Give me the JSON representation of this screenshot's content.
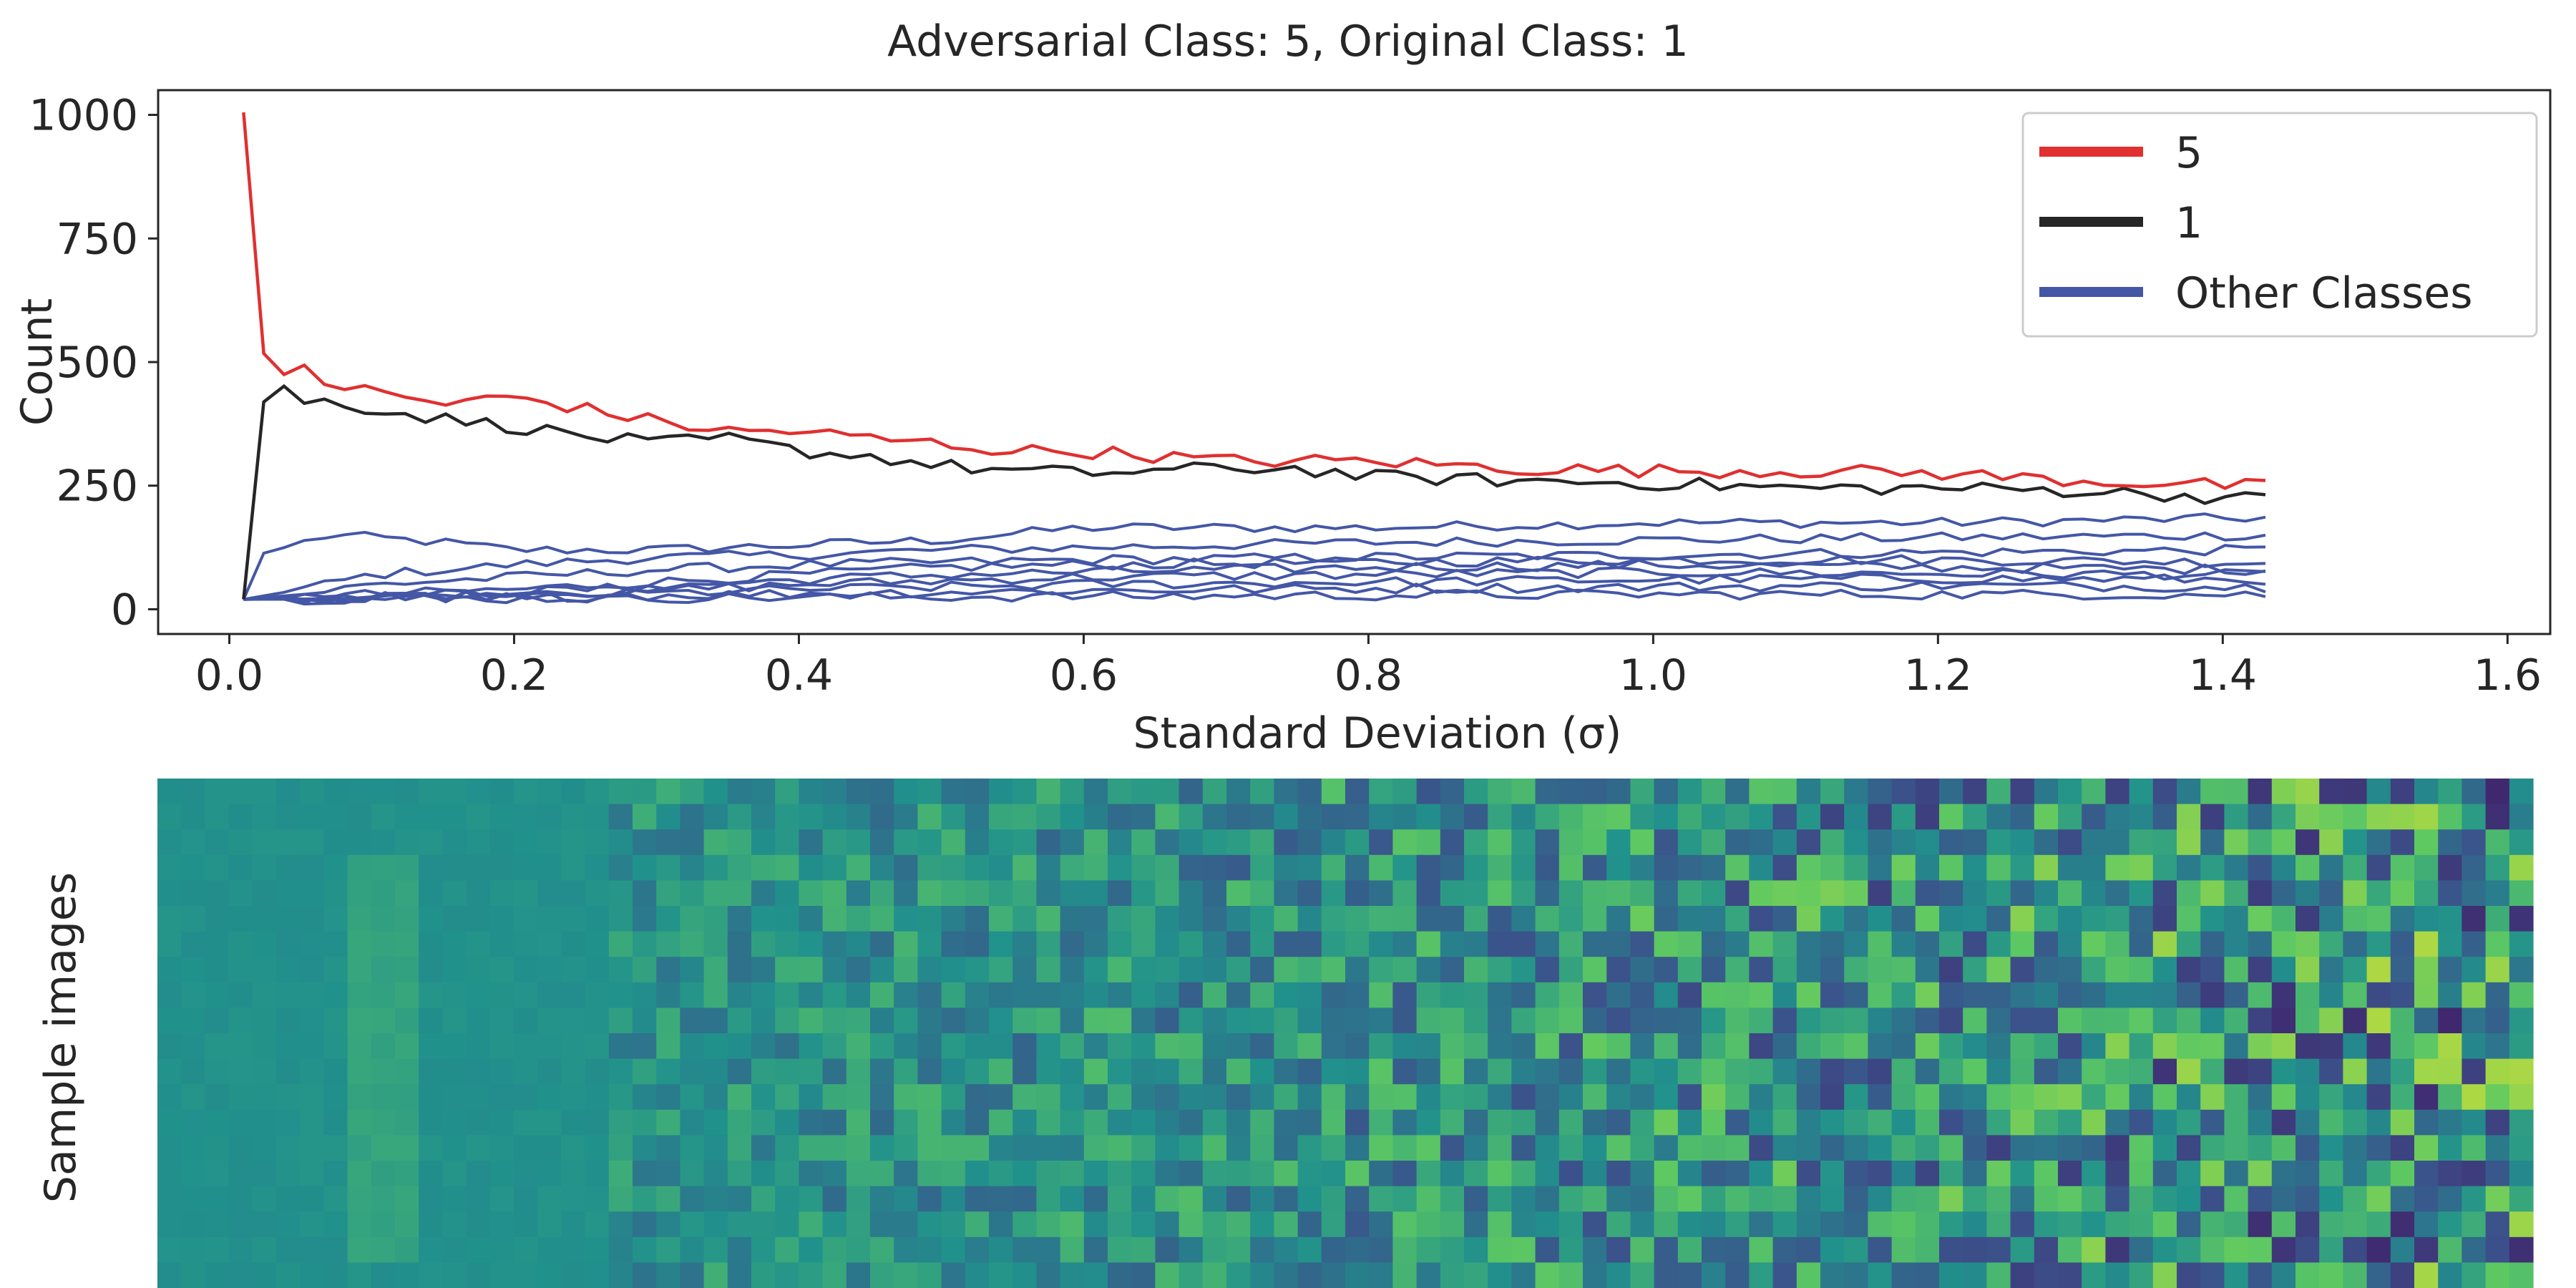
{
  "chart_data": [
    {
      "type": "line",
      "title": "Adversarial Class: 5, Original Class: 1",
      "xlabel": "Standard Deviation (σ)",
      "ylabel": "Count",
      "xlim": [
        -0.05,
        1.63
      ],
      "ylim": [
        -50,
        1050
      ],
      "xticks": [
        0.0,
        0.2,
        0.4,
        0.6,
        0.8,
        1.0,
        1.2,
        1.4,
        1.6
      ],
      "xtick_labels": [
        "0.0",
        "0.2",
        "0.4",
        "0.6",
        "0.8",
        "1.0",
        "1.2",
        "1.4",
        "1.6"
      ],
      "yticks": [
        0,
        250,
        500,
        750,
        1000
      ],
      "ytick_labels": [
        "0",
        "250",
        "500",
        "750",
        "1000"
      ],
      "grid": false,
      "legend": {
        "placement": "top-right",
        "entries": [
          "5",
          "1",
          "Other Classes"
        ]
      },
      "colors": {
        "adversarial": "#e03030",
        "original": "#262626",
        "other": "#4457a6"
      },
      "x": {
        "start": 0.01,
        "step": 0.0142,
        "count": 101
      },
      "series": [
        {
          "name": "5",
          "color": "#e03030",
          "keypoints": [
            [
              0.01,
              1005
            ],
            [
              0.02,
              530
            ],
            [
              0.04,
              470
            ],
            [
              0.05,
              500
            ],
            [
              0.07,
              455
            ],
            [
              0.1,
              440
            ],
            [
              0.15,
              415
            ],
            [
              0.2,
              430
            ],
            [
              0.25,
              405
            ],
            [
              0.3,
              380
            ],
            [
              0.35,
              360
            ],
            [
              0.4,
              360
            ],
            [
              0.45,
              345
            ],
            [
              0.5,
              335
            ],
            [
              0.55,
              320
            ],
            [
              0.6,
              320
            ],
            [
              0.7,
              300
            ],
            [
              0.75,
              300
            ],
            [
              0.8,
              300
            ],
            [
              0.9,
              285
            ],
            [
              1.0,
              280
            ],
            [
              1.1,
              280
            ],
            [
              1.2,
              275
            ],
            [
              1.3,
              260
            ],
            [
              1.43,
              248
            ]
          ]
        },
        {
          "name": "1",
          "color": "#262626",
          "keypoints": [
            [
              0.01,
              20
            ],
            [
              0.02,
              410
            ],
            [
              0.04,
              455
            ],
            [
              0.05,
              410
            ],
            [
              0.07,
              425
            ],
            [
              0.1,
              405
            ],
            [
              0.15,
              385
            ],
            [
              0.2,
              370
            ],
            [
              0.25,
              350
            ],
            [
              0.3,
              335
            ],
            [
              0.35,
              345
            ],
            [
              0.4,
              320
            ],
            [
              0.45,
              310
            ],
            [
              0.5,
              290
            ],
            [
              0.55,
              280
            ],
            [
              0.6,
              275
            ],
            [
              0.7,
              285
            ],
            [
              0.75,
              285
            ],
            [
              0.8,
              268
            ],
            [
              0.9,
              260
            ],
            [
              1.0,
              255
            ],
            [
              1.1,
              245
            ],
            [
              1.2,
              245
            ],
            [
              1.3,
              240
            ],
            [
              1.43,
              222
            ]
          ]
        }
      ],
      "other_series": [
        {
          "keypoints": [
            [
              0.01,
              20
            ],
            [
              0.02,
              110
            ],
            [
              0.07,
              150
            ],
            [
              0.1,
              145
            ],
            [
              0.15,
              135
            ],
            [
              0.2,
              120
            ],
            [
              0.3,
              120
            ],
            [
              0.4,
              130
            ],
            [
              0.5,
              140
            ],
            [
              0.6,
              165
            ],
            [
              0.8,
              165
            ],
            [
              1.0,
              175
            ],
            [
              1.2,
              175
            ],
            [
              1.43,
              185
            ]
          ]
        },
        {
          "keypoints": [
            [
              0.01,
              20
            ],
            [
              0.05,
              40
            ],
            [
              0.1,
              70
            ],
            [
              0.2,
              90
            ],
            [
              0.3,
              105
            ],
            [
              0.4,
              110
            ],
            [
              0.5,
              120
            ],
            [
              0.6,
              125
            ],
            [
              0.8,
              135
            ],
            [
              1.0,
              140
            ],
            [
              1.2,
              145
            ],
            [
              1.43,
              150
            ]
          ]
        },
        {
          "keypoints": [
            [
              0.01,
              20
            ],
            [
              0.05,
              30
            ],
            [
              0.1,
              50
            ],
            [
              0.2,
              65
            ],
            [
              0.3,
              80
            ],
            [
              0.4,
              90
            ],
            [
              0.5,
              95
            ],
            [
              0.6,
              100
            ],
            [
              0.8,
              105
            ],
            [
              1.0,
              110
            ],
            [
              1.2,
              115
            ],
            [
              1.43,
              120
            ]
          ]
        },
        {
          "keypoints": [
            [
              0.01,
              20
            ],
            [
              0.1,
              30
            ],
            [
              0.2,
              40
            ],
            [
              0.3,
              55
            ],
            [
              0.4,
              70
            ],
            [
              0.5,
              85
            ],
            [
              0.6,
              90
            ],
            [
              0.8,
              95
            ],
            [
              1.0,
              100
            ],
            [
              1.2,
              100
            ],
            [
              1.43,
              95
            ]
          ]
        },
        {
          "keypoints": [
            [
              0.01,
              20
            ],
            [
              0.1,
              25
            ],
            [
              0.2,
              35
            ],
            [
              0.3,
              45
            ],
            [
              0.4,
              60
            ],
            [
              0.5,
              70
            ],
            [
              0.6,
              75
            ],
            [
              0.8,
              85
            ],
            [
              1.0,
              90
            ],
            [
              1.2,
              85
            ],
            [
              1.43,
              80
            ]
          ]
        },
        {
          "keypoints": [
            [
              0.01,
              20
            ],
            [
              0.1,
              25
            ],
            [
              0.2,
              30
            ],
            [
              0.3,
              38
            ],
            [
              0.4,
              50
            ],
            [
              0.5,
              58
            ],
            [
              0.6,
              65
            ],
            [
              0.8,
              70
            ],
            [
              1.0,
              75
            ],
            [
              1.2,
              72
            ],
            [
              1.43,
              70
            ]
          ]
        },
        {
          "keypoints": [
            [
              0.01,
              20
            ],
            [
              0.1,
              22
            ],
            [
              0.2,
              27
            ],
            [
              0.3,
              32
            ],
            [
              0.4,
              40
            ],
            [
              0.5,
              45
            ],
            [
              0.6,
              50
            ],
            [
              0.8,
              55
            ],
            [
              1.0,
              60
            ],
            [
              1.2,
              62
            ],
            [
              1.43,
              60
            ]
          ]
        },
        {
          "keypoints": [
            [
              0.01,
              20
            ],
            [
              0.1,
              22
            ],
            [
              0.2,
              25
            ],
            [
              0.3,
              28
            ],
            [
              0.4,
              32
            ],
            [
              0.5,
              35
            ],
            [
              0.6,
              38
            ],
            [
              0.8,
              42
            ],
            [
              1.0,
              45
            ],
            [
              1.2,
              48
            ],
            [
              1.43,
              45
            ]
          ]
        },
        {
          "keypoints": [
            [
              0.01,
              20
            ],
            [
              0.2,
              22
            ],
            [
              0.4,
              24
            ],
            [
              0.6,
              26
            ],
            [
              0.8,
              28
            ],
            [
              1.0,
              30
            ],
            [
              1.2,
              30
            ],
            [
              1.43,
              30
            ]
          ]
        }
      ]
    },
    {
      "type": "heatmap",
      "ylabel": "Sample images",
      "colormap": [
        "#440154",
        "#3b528b",
        "#21918c",
        "#5ec962",
        "#fde725"
      ],
      "description_of_content": "grid of noisy sample images",
      "rows": 20,
      "cols": 100
    }
  ]
}
